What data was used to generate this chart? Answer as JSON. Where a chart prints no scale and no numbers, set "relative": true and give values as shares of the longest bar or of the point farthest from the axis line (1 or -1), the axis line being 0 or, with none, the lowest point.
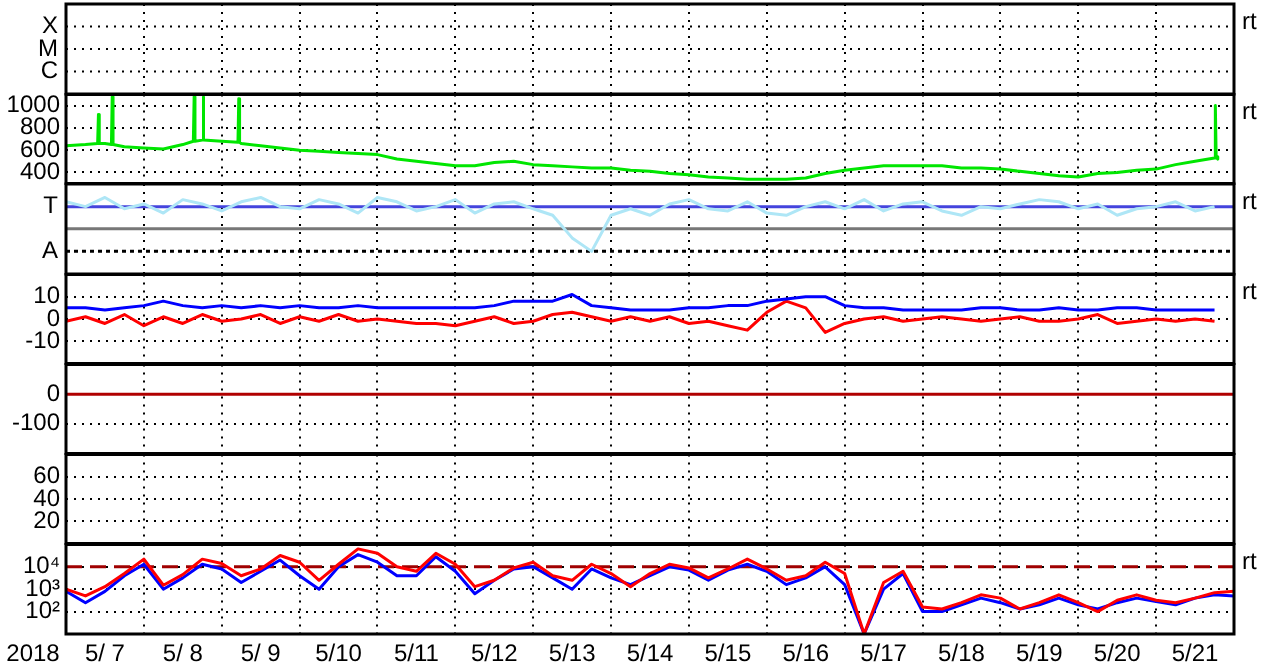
{
  "chart_data": [
    {
      "type": "other",
      "y_categories": [
        "X",
        "M",
        "C"
      ],
      "annotations": [
        "rt"
      ]
    },
    {
      "type": "line",
      "xlim": [
        "2018-05-07T00:00",
        "2018-05-22T00:00"
      ],
      "xticks": [
        "2018-05-07T00:00",
        "2018-05-08T00:00",
        "2018-05-09T00:00",
        "2018-05-10T00:00",
        "2018-05-11T00:00",
        "2018-05-12T00:00",
        "2018-05-13T00:00",
        "2018-05-14T00:00",
        "2018-05-15T00:00",
        "2018-05-16T00:00",
        "2018-05-17T00:00",
        "2018-05-18T00:00",
        "2018-05-19T00:00",
        "2018-05-20T00:00",
        "2018-05-21T00:00",
        "2018-05-22T00:00"
      ],
      "ylim": [
        300,
        1100
      ],
      "yticks": [
        400,
        600,
        800,
        1000
      ],
      "grid": true,
      "tick_labels": "y",
      "annotations": [
        "rt"
      ],
      "series": [
        {
          "color": "#00e600",
          "x": [
            "2018-05-07T00:00",
            "2018-05-07T06:00",
            "2018-05-07T09:45",
            "2018-05-07T10:00",
            "2018-05-07T10:15",
            "2018-05-07T12:00",
            "2018-05-07T14:00",
            "2018-05-07T14:15",
            "2018-05-07T14:30",
            "2018-05-07T18:00",
            "2018-05-08T00:00",
            "2018-05-08T06:00",
            "2018-05-08T12:00",
            "2018-05-08T15:15",
            "2018-05-08T15:30",
            "2018-05-08T15:45",
            "2018-05-08T18:00",
            "2018-05-08T18:15",
            "2018-05-08T18:30",
            "2018-05-09T00:00",
            "2018-05-09T05:00",
            "2018-05-09T05:15",
            "2018-05-09T05:30",
            "2018-05-09T06:00",
            "2018-05-09T12:00",
            "2018-05-09T18:00",
            "2018-05-10T00:00",
            "2018-05-10T06:00",
            "2018-05-10T12:00",
            "2018-05-10T18:00",
            "2018-05-11T00:00",
            "2018-05-11T06:00",
            "2018-05-11T12:00",
            "2018-05-11T18:00",
            "2018-05-12T00:00",
            "2018-05-12T06:00",
            "2018-05-12T12:00",
            "2018-05-12T18:00",
            "2018-05-13T00:00",
            "2018-05-13T06:00",
            "2018-05-13T12:00",
            "2018-05-13T18:00",
            "2018-05-14T00:00",
            "2018-05-14T06:00",
            "2018-05-14T12:00",
            "2018-05-14T18:00",
            "2018-05-15T00:00",
            "2018-05-15T06:00",
            "2018-05-15T12:00",
            "2018-05-15T18:00",
            "2018-05-16T00:00",
            "2018-05-16T06:00",
            "2018-05-16T12:00",
            "2018-05-16T18:00",
            "2018-05-17T00:00",
            "2018-05-17T06:00",
            "2018-05-17T12:00",
            "2018-05-17T18:00",
            "2018-05-18T00:00",
            "2018-05-18T06:00",
            "2018-05-18T12:00",
            "2018-05-18T18:00",
            "2018-05-19T00:00",
            "2018-05-19T06:00",
            "2018-05-19T12:00",
            "2018-05-19T18:00",
            "2018-05-20T00:00",
            "2018-05-20T06:00",
            "2018-05-20T12:00",
            "2018-05-20T18:00",
            "2018-05-21T00:00",
            "2018-05-21T06:00",
            "2018-05-21T12:00",
            "2018-05-21T18:00",
            "2018-05-21T18:15",
            "2018-05-21T18:30",
            "2018-05-21T19:00"
          ],
          "values": [
            640,
            650,
            660,
            920,
            660,
            660,
            650,
            1080,
            650,
            630,
            620,
            610,
            650,
            680,
            1080,
            680,
            690,
            1080,
            690,
            680,
            670,
            1060,
            670,
            660,
            640,
            620,
            600,
            590,
            580,
            570,
            560,
            520,
            500,
            480,
            460,
            460,
            490,
            500,
            470,
            460,
            450,
            440,
            440,
            420,
            410,
            390,
            380,
            360,
            350,
            340,
            340,
            340,
            350,
            390,
            420,
            440,
            460,
            460,
            460,
            460,
            440,
            440,
            430,
            410,
            390,
            370,
            360,
            390,
            400,
            420,
            430,
            470,
            500,
            530,
            1000,
            540,
            520
          ]
        }
      ]
    },
    {
      "type": "line",
      "relative": true,
      "xlim": [
        "2018-05-07T00:00",
        "2018-05-22T00:00"
      ],
      "xticks": [
        "2018-05-07T00:00",
        "2018-05-08T00:00",
        "2018-05-09T00:00",
        "2018-05-10T00:00",
        "2018-05-11T00:00",
        "2018-05-12T00:00",
        "2018-05-13T00:00",
        "2018-05-14T00:00",
        "2018-05-15T00:00",
        "2018-05-16T00:00",
        "2018-05-17T00:00",
        "2018-05-18T00:00",
        "2018-05-19T00:00",
        "2018-05-20T00:00",
        "2018-05-21T00:00",
        "2018-05-22T00:00"
      ],
      "grid": "x",
      "tick_labels": false,
      "annotations": [
        "rt"
      ],
      "ref_lines": [
        {
          "axis": "y",
          "value": 0.83,
          "label": "T",
          "color": "#4444dd"
        },
        {
          "axis": "y",
          "value": 0.42,
          "color": "#777777"
        },
        {
          "axis": "y",
          "value": 0,
          "label": "A",
          "color": "#000000",
          "line_style": "dotted"
        }
      ],
      "x": [
        "2018-05-07T00:00",
        "2018-05-07T06:00",
        "2018-05-07T12:00",
        "2018-05-07T18:00",
        "2018-05-08T00:00",
        "2018-05-08T06:00",
        "2018-05-08T12:00",
        "2018-05-08T18:00",
        "2018-05-09T00:00",
        "2018-05-09T06:00",
        "2018-05-09T12:00",
        "2018-05-09T18:00",
        "2018-05-10T00:00",
        "2018-05-10T06:00",
        "2018-05-10T12:00",
        "2018-05-10T18:00",
        "2018-05-11T00:00",
        "2018-05-11T06:00",
        "2018-05-11T12:00",
        "2018-05-11T18:00",
        "2018-05-12T00:00",
        "2018-05-12T06:00",
        "2018-05-12T12:00",
        "2018-05-12T18:00",
        "2018-05-13T00:00",
        "2018-05-13T06:00",
        "2018-05-13T12:00",
        "2018-05-13T18:00",
        "2018-05-14T00:00",
        "2018-05-14T06:00",
        "2018-05-14T12:00",
        "2018-05-14T18:00",
        "2018-05-15T00:00",
        "2018-05-15T06:00",
        "2018-05-15T12:00",
        "2018-05-15T18:00",
        "2018-05-16T00:00",
        "2018-05-16T06:00",
        "2018-05-16T12:00",
        "2018-05-16T18:00",
        "2018-05-17T00:00",
        "2018-05-17T06:00",
        "2018-05-17T12:00",
        "2018-05-17T18:00",
        "2018-05-18T00:00",
        "2018-05-18T06:00",
        "2018-05-18T12:00",
        "2018-05-18T18:00",
        "2018-05-19T00:00",
        "2018-05-19T06:00",
        "2018-05-19T12:00",
        "2018-05-19T18:00",
        "2018-05-20T00:00",
        "2018-05-20T06:00",
        "2018-05-20T12:00",
        "2018-05-20T18:00",
        "2018-05-21T00:00",
        "2018-05-21T06:00",
        "2018-05-21T12:00",
        "2018-05-21T18:00"
      ],
      "series": [
        {
          "color": "#aee6f6",
          "values": [
            0.92,
            0.83,
            1,
            0.79,
            0.88,
            0.71,
            0.96,
            0.88,
            0.75,
            0.92,
            1,
            0.83,
            0.79,
            0.96,
            0.88,
            0.71,
            1,
            0.92,
            0.75,
            0.83,
            0.96,
            0.71,
            0.88,
            0.92,
            0.79,
            0.67,
            0.25,
            0,
            0.67,
            0.79,
            0.67,
            0.88,
            0.96,
            0.79,
            0.75,
            0.92,
            0.71,
            0.67,
            0.83,
            0.92,
            0.79,
            0.96,
            0.75,
            0.88,
            0.92,
            0.75,
            0.67,
            0.83,
            0.79,
            0.88,
            0.96,
            0.92,
            0.79,
            0.88,
            0.67,
            0.79,
            0.83,
            0.92,
            0.75,
            0.83
          ]
        }
      ]
    },
    {
      "type": "line",
      "xlim": [
        "2018-05-07T00:00",
        "2018-05-22T00:00"
      ],
      "xticks": [
        "2018-05-07T00:00",
        "2018-05-08T00:00",
        "2018-05-09T00:00",
        "2018-05-10T00:00",
        "2018-05-11T00:00",
        "2018-05-12T00:00",
        "2018-05-13T00:00",
        "2018-05-14T00:00",
        "2018-05-15T00:00",
        "2018-05-16T00:00",
        "2018-05-17T00:00",
        "2018-05-18T00:00",
        "2018-05-19T00:00",
        "2018-05-20T00:00",
        "2018-05-21T00:00",
        "2018-05-22T00:00"
      ],
      "ylim": [
        -20,
        20
      ],
      "yticks": [
        -10,
        0,
        10
      ],
      "grid": true,
      "tick_labels": "y",
      "annotations": [
        "rt"
      ],
      "x": [
        "2018-05-07T00:00",
        "2018-05-07T06:00",
        "2018-05-07T12:00",
        "2018-05-07T18:00",
        "2018-05-08T00:00",
        "2018-05-08T06:00",
        "2018-05-08T12:00",
        "2018-05-08T18:00",
        "2018-05-09T00:00",
        "2018-05-09T06:00",
        "2018-05-09T12:00",
        "2018-05-09T18:00",
        "2018-05-10T00:00",
        "2018-05-10T06:00",
        "2018-05-10T12:00",
        "2018-05-10T18:00",
        "2018-05-11T00:00",
        "2018-05-11T06:00",
        "2018-05-11T12:00",
        "2018-05-11T18:00",
        "2018-05-12T00:00",
        "2018-05-12T06:00",
        "2018-05-12T12:00",
        "2018-05-12T18:00",
        "2018-05-13T00:00",
        "2018-05-13T06:00",
        "2018-05-13T12:00",
        "2018-05-13T18:00",
        "2018-05-14T00:00",
        "2018-05-14T06:00",
        "2018-05-14T12:00",
        "2018-05-14T18:00",
        "2018-05-15T00:00",
        "2018-05-15T06:00",
        "2018-05-15T12:00",
        "2018-05-15T18:00",
        "2018-05-16T00:00",
        "2018-05-16T06:00",
        "2018-05-16T12:00",
        "2018-05-16T18:00",
        "2018-05-17T00:00",
        "2018-05-17T06:00",
        "2018-05-17T12:00",
        "2018-05-17T18:00",
        "2018-05-18T00:00",
        "2018-05-18T06:00",
        "2018-05-18T12:00",
        "2018-05-18T18:00",
        "2018-05-19T00:00",
        "2018-05-19T06:00",
        "2018-05-19T12:00",
        "2018-05-19T18:00",
        "2018-05-20T00:00",
        "2018-05-20T06:00",
        "2018-05-20T12:00",
        "2018-05-20T18:00",
        "2018-05-21T00:00",
        "2018-05-21T06:00",
        "2018-05-21T12:00",
        "2018-05-21T18:00"
      ],
      "series": [
        {
          "color": "#0000ff",
          "values": [
            5,
            5,
            4,
            5,
            6,
            8,
            6,
            5,
            6,
            5,
            6,
            5,
            6,
            5,
            5,
            6,
            5,
            5,
            5,
            5,
            5,
            5,
            6,
            8,
            8,
            8,
            11,
            6,
            5,
            4,
            4,
            4,
            5,
            5,
            6,
            6,
            8,
            9,
            10,
            10,
            6,
            5,
            5,
            4,
            4,
            4,
            4,
            5,
            5,
            4,
            4,
            5,
            4,
            4,
            5,
            5,
            4,
            4,
            4,
            4
          ]
        },
        {
          "color": "#ff0000",
          "values": [
            -1,
            1,
            -2,
            2,
            -3,
            1,
            -2,
            2,
            -1,
            0,
            2,
            -2,
            1,
            -1,
            2,
            -1,
            0,
            -1,
            -2,
            -2,
            -3,
            -1,
            1,
            -2,
            -1,
            2,
            3,
            1,
            -1,
            1,
            -1,
            1,
            -2,
            -1,
            -3,
            -5,
            3,
            8,
            5,
            -6,
            -2,
            0,
            1,
            -1,
            0,
            1,
            0,
            -1,
            0,
            1,
            -1,
            -1,
            0,
            2,
            -2,
            -1,
            0,
            -1,
            0,
            -1
          ]
        }
      ]
    },
    {
      "type": "line",
      "xlim": [
        "2018-05-07T00:00",
        "2018-05-22T00:00"
      ],
      "xticks": [
        "2018-05-07T00:00",
        "2018-05-08T00:00",
        "2018-05-09T00:00",
        "2018-05-10T00:00",
        "2018-05-11T00:00",
        "2018-05-12T00:00",
        "2018-05-13T00:00",
        "2018-05-14T00:00",
        "2018-05-15T00:00",
        "2018-05-16T00:00",
        "2018-05-17T00:00",
        "2018-05-18T00:00",
        "2018-05-19T00:00",
        "2018-05-20T00:00",
        "2018-05-21T00:00",
        "2018-05-22T00:00"
      ],
      "ylim": [
        -200,
        100
      ],
      "yticks": [
        -100,
        0
      ],
      "grid": true,
      "tick_labels": "y",
      "ref_lines": [
        {
          "axis": "y",
          "value": 0,
          "color": "#b00000"
        }
      ]
    },
    {
      "type": "bar",
      "xlim": [
        "2018-05-07T00:00",
        "2018-05-22T00:00"
      ],
      "xticks": [
        "2018-05-07T00:00",
        "2018-05-08T00:00",
        "2018-05-09T00:00",
        "2018-05-10T00:00",
        "2018-05-11T00:00",
        "2018-05-12T00:00",
        "2018-05-13T00:00",
        "2018-05-14T00:00",
        "2018-05-15T00:00",
        "2018-05-16T00:00",
        "2018-05-17T00:00",
        "2018-05-18T00:00",
        "2018-05-19T00:00",
        "2018-05-20T00:00",
        "2018-05-21T00:00",
        "2018-05-22T00:00"
      ],
      "ylim": [
        0,
        80
      ],
      "yticks": [
        20,
        40,
        60
      ],
      "grid": true,
      "tick_labels": "y"
    },
    {
      "type": "line",
      "log": true,
      "xlabel": "2018",
      "xlim": [
        "2018-05-07T00:00",
        "2018-05-22T00:00"
      ],
      "xticks": [
        {
          "value": "2018-05-07T00:00",
          "label": null
        },
        {
          "value": "2018-05-07T12:00",
          "label": "5/ 7"
        },
        {
          "value": "2018-05-08T00:00",
          "label": null
        },
        {
          "value": "2018-05-08T12:00",
          "label": "5/ 8"
        },
        {
          "value": "2018-05-09T00:00",
          "label": null
        },
        {
          "value": "2018-05-09T12:00",
          "label": "5/ 9"
        },
        {
          "value": "2018-05-10T00:00",
          "label": null
        },
        {
          "value": "2018-05-10T12:00",
          "label": "5/10"
        },
        {
          "value": "2018-05-11T00:00",
          "label": null
        },
        {
          "value": "2018-05-11T12:00",
          "label": "5/11"
        },
        {
          "value": "2018-05-12T00:00",
          "label": null
        },
        {
          "value": "2018-05-12T12:00",
          "label": "5/12"
        },
        {
          "value": "2018-05-13T00:00",
          "label": null
        },
        {
          "value": "2018-05-13T12:00",
          "label": "5/13"
        },
        {
          "value": "2018-05-14T00:00",
          "label": null
        },
        {
          "value": "2018-05-14T12:00",
          "label": "5/14"
        },
        {
          "value": "2018-05-15T00:00",
          "label": null
        },
        {
          "value": "2018-05-15T12:00",
          "label": "5/15"
        },
        {
          "value": "2018-05-16T00:00",
          "label": null
        },
        {
          "value": "2018-05-16T12:00",
          "label": "5/16"
        },
        {
          "value": "2018-05-17T00:00",
          "label": null
        },
        {
          "value": "2018-05-17T12:00",
          "label": "5/17"
        },
        {
          "value": "2018-05-18T00:00",
          "label": null
        },
        {
          "value": "2018-05-18T12:00",
          "label": "5/18"
        },
        {
          "value": "2018-05-19T00:00",
          "label": null
        },
        {
          "value": "2018-05-19T12:00",
          "label": "5/19"
        },
        {
          "value": "2018-05-20T00:00",
          "label": null
        },
        {
          "value": "2018-05-20T12:00",
          "label": "5/20"
        },
        {
          "value": "2018-05-21T00:00",
          "label": null
        },
        {
          "value": "2018-05-21T12:00",
          "label": "5/21"
        },
        {
          "value": "2018-05-22T00:00",
          "label": null
        }
      ],
      "ylim": [
        10,
        100000
      ],
      "yticks": [
        {
          "value": 100,
          "label": "10²"
        },
        {
          "value": 1000,
          "label": "10³"
        },
        {
          "value": 10000,
          "label": "10⁴"
        }
      ],
      "grid": true,
      "annotations": [
        "rt"
      ],
      "ref_lines": [
        {
          "axis": "y",
          "value": 10000,
          "color": "#a00000",
          "line_style": "dashed"
        }
      ],
      "x": [
        "2018-05-07T00:00",
        "2018-05-07T06:00",
        "2018-05-07T12:00",
        "2018-05-07T18:00",
        "2018-05-08T00:00",
        "2018-05-08T06:00",
        "2018-05-08T12:00",
        "2018-05-08T18:00",
        "2018-05-09T00:00",
        "2018-05-09T06:00",
        "2018-05-09T12:00",
        "2018-05-09T18:00",
        "2018-05-10T00:00",
        "2018-05-10T06:00",
        "2018-05-10T12:00",
        "2018-05-10T18:00",
        "2018-05-11T00:00",
        "2018-05-11T06:00",
        "2018-05-11T12:00",
        "2018-05-11T18:00",
        "2018-05-12T00:00",
        "2018-05-12T06:00",
        "2018-05-12T12:00",
        "2018-05-12T18:00",
        "2018-05-13T00:00",
        "2018-05-13T06:00",
        "2018-05-13T12:00",
        "2018-05-13T18:00",
        "2018-05-14T00:00",
        "2018-05-14T06:00",
        "2018-05-14T12:00",
        "2018-05-14T18:00",
        "2018-05-15T00:00",
        "2018-05-15T06:00",
        "2018-05-15T12:00",
        "2018-05-15T18:00",
        "2018-05-16T00:00",
        "2018-05-16T06:00",
        "2018-05-16T12:00",
        "2018-05-16T18:00",
        "2018-05-17T00:00",
        "2018-05-17T06:00",
        "2018-05-17T12:00",
        "2018-05-17T18:00",
        "2018-05-18T00:00",
        "2018-05-18T06:00",
        "2018-05-18T12:00",
        "2018-05-18T18:00",
        "2018-05-19T00:00",
        "2018-05-19T06:00",
        "2018-05-19T12:00",
        "2018-05-19T18:00",
        "2018-05-20T00:00",
        "2018-05-20T06:00",
        "2018-05-20T12:00",
        "2018-05-20T18:00",
        "2018-05-21T00:00",
        "2018-05-21T06:00",
        "2018-05-21T12:00",
        "2018-05-21T18:00",
        "2018-05-22T00:00"
      ],
      "series": [
        {
          "color": "#ff0000",
          "values": [
            1000,
            500,
            1300,
            5000,
            22000,
            1500,
            4500,
            22000,
            14000,
            4000,
            8000,
            32000,
            16000,
            2500,
            13000,
            63000,
            40000,
            10000,
            6300,
            40000,
            13000,
            1300,
            2500,
            8900,
            16000,
            4000,
            2500,
            13000,
            5000,
            1300,
            5000,
            13000,
            8900,
            3200,
            8000,
            22000,
            8000,
            2500,
            4000,
            16000,
            5000,
            10,
            2000,
            6300,
            160,
            130,
            250,
            560,
            400,
            130,
            250,
            560,
            250,
            100,
            320,
            560,
            320,
            250,
            400,
            700,
            800
          ]
        },
        {
          "color": "#0000ff",
          "values": [
            800,
            250,
            800,
            4000,
            13000,
            1000,
            3200,
            13000,
            8000,
            2000,
            6300,
            20000,
            4000,
            1000,
            10000,
            35000,
            16000,
            4000,
            4000,
            28000,
            6300,
            630,
            2500,
            8000,
            10000,
            3200,
            1000,
            8000,
            3200,
            1600,
            4000,
            10000,
            7100,
            2500,
            7100,
            13000,
            6300,
            1600,
            3200,
            10000,
            1600,
            10,
            1000,
            5000,
            100,
            100,
            200,
            400,
            250,
            130,
            200,
            400,
            200,
            130,
            250,
            400,
            280,
            200,
            400,
            560,
            500
          ]
        }
      ]
    }
  ]
}
